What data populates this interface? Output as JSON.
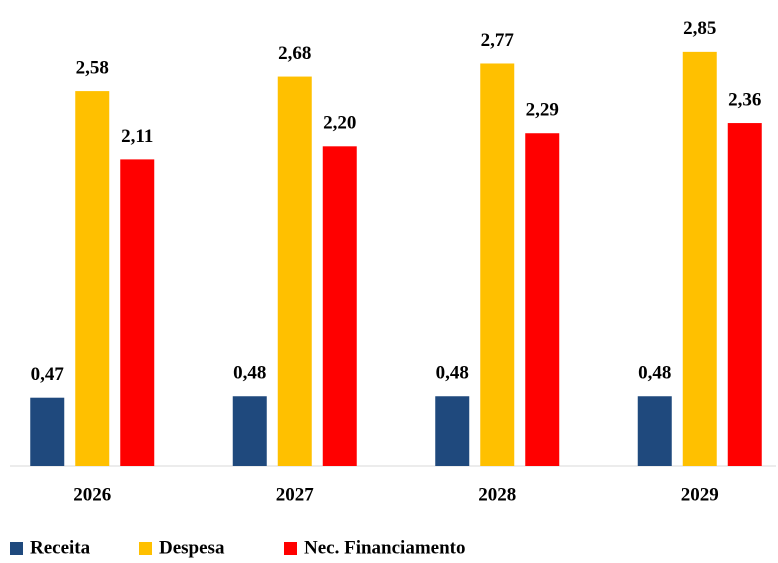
{
  "chart_data": {
    "type": "bar",
    "categories": [
      "2026",
      "2027",
      "2028",
      "2029"
    ],
    "series": [
      {
        "name": "Receita",
        "color": "#1f497d",
        "values": [
          0.47,
          0.48,
          0.48,
          0.48
        ],
        "value_labels": [
          "0,47",
          "0,48",
          "0,48",
          "0,48"
        ]
      },
      {
        "name": "Despesa",
        "color": "#ffc000",
        "values": [
          2.58,
          2.68,
          2.77,
          2.85
        ],
        "value_labels": [
          "2,58",
          "2,68",
          "2,77",
          "2,85"
        ]
      },
      {
        "name": "Nec. Financiamento",
        "color": "#ff0000",
        "values": [
          2.11,
          2.2,
          2.29,
          2.36
        ],
        "value_labels": [
          "2,11",
          "2,20",
          "2,29",
          "2,36"
        ]
      }
    ],
    "ylim": [
      0,
      3.2
    ],
    "grid": false
  }
}
